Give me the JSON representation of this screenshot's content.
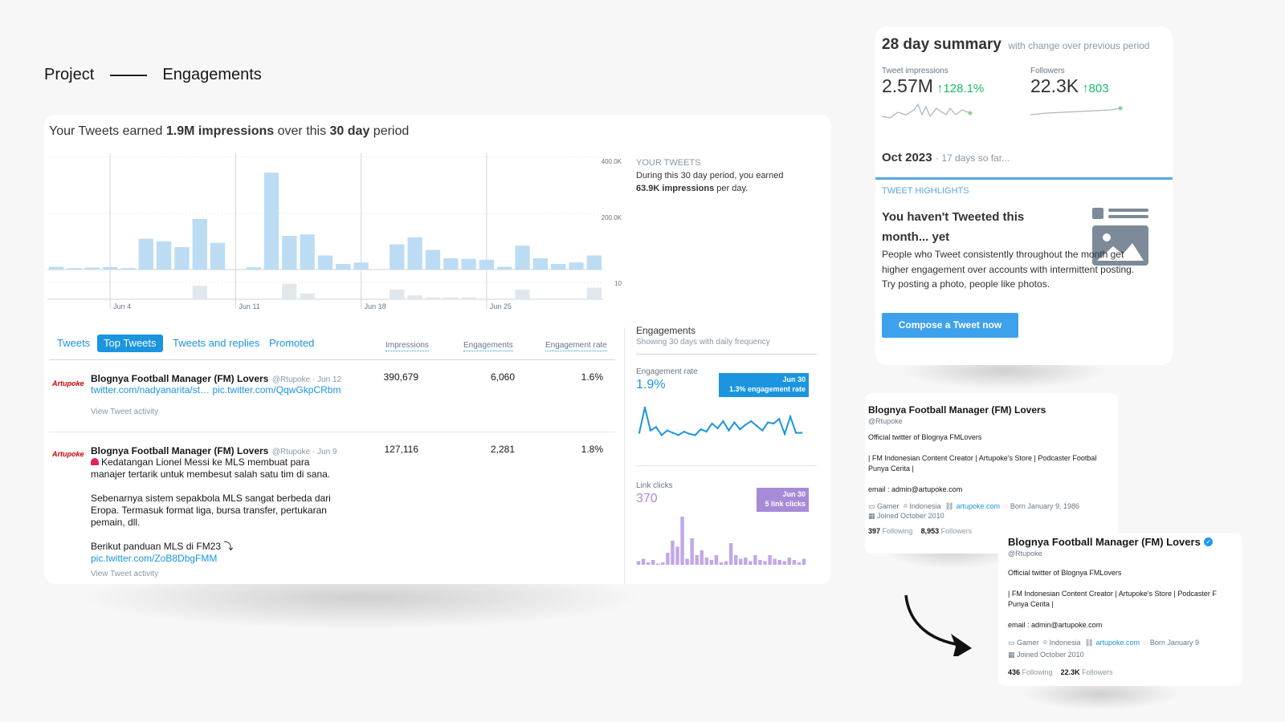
{
  "breadcrumb": {
    "project": "Project",
    "current": "Engagements"
  },
  "summary_card": {
    "earned_prefix": "Your Tweets earned ",
    "impressions_bold": "1.9M impressions",
    "earned_mid": " over this ",
    "period_bold": "30 day",
    "earned_suffix": " period",
    "your_tweets_label": "YOUR TWEETS",
    "your_tweets_text": "During this 30 day period, you earned",
    "per_day_bold": "63.9K impressions",
    "per_day_suffix": " per day."
  },
  "chart_data": {
    "type": "bar",
    "y_axis_ticks": [
      "400.0K",
      "200.0K",
      "10"
    ],
    "x_ticks": [
      "Jun 4",
      "Jun 11",
      "Jun 18",
      "Jun 25"
    ],
    "impressions": [
      10,
      5,
      7,
      9,
      5,
      110,
      100,
      80,
      180,
      95,
      0,
      8,
      345,
      120,
      125,
      50,
      20,
      25,
      0,
      90,
      115,
      70,
      40,
      38,
      35,
      10,
      85,
      40,
      20,
      25,
      50
    ],
    "engagements": [
      0,
      0,
      0,
      0,
      0,
      0,
      0,
      0,
      7,
      0,
      0,
      0,
      0,
      8,
      3,
      0,
      0,
      0,
      0,
      5,
      2,
      1,
      1,
      1,
      0,
      0,
      5,
      0,
      0,
      0,
      6
    ],
    "ylim": [
      0,
      400000
    ],
    "bar_color": "#bcdcf3",
    "engagement_bar_color": "#e1e8ed"
  },
  "tabs": [
    "Tweets",
    "Top Tweets",
    "Tweets and replies",
    "Promoted"
  ],
  "active_tab": "Top Tweets",
  "columns": [
    "Impressions",
    "Engagements",
    "Engagement rate"
  ],
  "tweets": [
    {
      "logo": "Artupoke",
      "name": "Blognya Football Manager (FM) Lovers",
      "meta": "@Rtupoke · Jun 12",
      "line1": "twitter.com/nadyanarita/st…",
      "line1b": "pic.twitter.com/QqwGkpCRbm",
      "activity": "View Tweet activity",
      "impressions": "390,679",
      "engagements": "6,060",
      "rate": "1.6%"
    },
    {
      "logo": "Artupoke",
      "name": "Blognya Football Manager (FM) Lovers",
      "meta": "@Rtupoke · Jun 9",
      "text1": "Kedatangan Lionel Messi ke MLS membuat para",
      "text2": "manajer tertarik untuk membesut salah satu tim di sana.",
      "text3": "Sebenarnya sistem sepakbola MLS sangat berbeda dari",
      "text4": "Eropa. Termasuk format liga, bursa transfer, pertukaran",
      "text5": "pemain, dll.",
      "text6": "Berikut panduan MLS di FM23 ⤵",
      "link": "pic.twitter.com/ZoB8DbgFMM",
      "activity": "View Tweet activity",
      "impressions": "127,116",
      "engagements": "2,281",
      "rate": "1.8%"
    }
  ],
  "engagements_panel": {
    "title": "Engagements",
    "subtitle": "Showing 30 days with daily frequency",
    "rate_label": "Engagement rate",
    "rate_value": "1.9%",
    "rate_tip_date": "Jun 30",
    "rate_tip_text": "1.3% engagement rate",
    "rate_series": [
      0.8,
      3.0,
      1.0,
      1.3,
      0.6,
      1.0,
      0.8,
      0.6,
      0.9,
      0.7,
      0.6,
      1.1,
      0.9,
      1.6,
      1.2,
      1.8,
      1.0,
      1.7,
      1.1,
      1.5,
      1.8,
      1.4,
      1.0,
      1.7,
      1.6,
      2.0,
      0.7,
      2.2,
      0.8,
      0.8
    ],
    "clicks_label": "Link clicks",
    "clicks_value": "370",
    "clicks_tip_date": "Jun 30",
    "clicks_tip_text": "5 link clicks",
    "clicks_series": [
      3,
      5,
      2,
      4,
      1,
      2,
      10,
      20,
      15,
      40,
      5,
      22,
      8,
      12,
      6,
      4,
      8,
      2,
      3,
      18,
      8,
      5,
      6,
      3,
      8,
      4,
      3,
      8,
      5,
      4,
      3,
      6,
      4,
      2,
      5
    ],
    "rate_color": "#1b95e0",
    "clicks_color": "#c2a7ea"
  },
  "day28": {
    "title": "28 day summary",
    "subtitle": "with change over previous period",
    "impr_label": "Tweet impressions",
    "impr_value": "2.57M",
    "impr_change": "128.1%",
    "foll_label": "Followers",
    "foll_value": "22.3K",
    "foll_change": "803",
    "month": "Oct 2023",
    "month_note": "· 17 days so far...",
    "highlights_label": "TWEET HIGHLIGHTS",
    "headline": "You haven't Tweeted this month... yet",
    "body": "People who Tweet consistently throughout the month get higher engagement over accounts with intermittent posting. Try posting a photo, people like photos.",
    "cta": "Compose a Tweet now",
    "up_color": "#17bf63"
  },
  "profile_old": {
    "name": "Blognya Football Manager (FM) Lovers",
    "handle": "@Rtupoke",
    "bio1": "Official twitter of Blognya FMLovers",
    "bio2": "| FM Indonesian Content Creator | Artupoke's Store | Podcaster Footbal",
    "bio3": "Punya Cerita |",
    "email": "email : admin@artupoke.com",
    "gamer": "Gamer",
    "location": "Indonesia",
    "website": "artupoke.com",
    "born": "Born January 9, 1986",
    "joined": "Joined October 2010",
    "following_count": "397",
    "following_label": "Following",
    "followers_count": "8,953",
    "followers_label": "Followers"
  },
  "profile_new": {
    "name": "Blognya Football Manager (FM) Lovers",
    "handle": "@Rtupoke",
    "bio1": "Official twitter of Blognya FMLovers",
    "bio2": "| FM Indonesian Content Creator | Artupoke's Store | Podcaster F",
    "bio3": "Punya Cerita |",
    "email": "email : admin@artupoke.com",
    "gamer": "Gamer",
    "location": "Indonesia",
    "website": "artupoke.com",
    "born": "Born January 9",
    "joined": "Joined October 2010",
    "following_count": "436",
    "following_label": "Following",
    "followers_count": "22.3K",
    "followers_label": "Followers"
  }
}
